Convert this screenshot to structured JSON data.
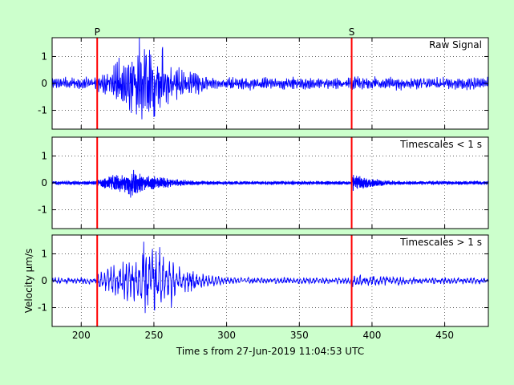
{
  "chart_data": {
    "type": "line",
    "xlabel": "Time s from 27-Jun-2019 11:04:53 UTC",
    "ylabel": "Velocity µm/s",
    "xlim": [
      180,
      480
    ],
    "xticks": [
      200,
      250,
      300,
      350,
      400,
      450
    ],
    "grid": "dotted",
    "line_color": "#0000ff",
    "phase_color": "#ff0000",
    "phases": [
      {
        "label": "P",
        "x": 211
      },
      {
        "label": "S",
        "x": 386
      }
    ],
    "panels": [
      {
        "title": "Raw Signal",
        "ylim": [
          -1.7,
          1.7
        ],
        "yticks": [
          -1,
          0,
          1
        ],
        "waveform": {
          "background_amp": 0.2,
          "events": [
            {
              "start": 211,
              "peak": 248,
              "end": 300,
              "amp": 1.35
            },
            {
              "start": 386,
              "end": 480,
              "amp": 0.28
            }
          ],
          "peaks": [
            {
              "x": 240,
              "y": 1.7
            },
            {
              "x": 238,
              "y": -1.15
            },
            {
              "x": 250,
              "y": -1.25
            },
            {
              "x": 256,
              "y": 1.35
            }
          ]
        }
      },
      {
        "title": "Timescales < 1 s",
        "ylim": [
          -1.7,
          1.7
        ],
        "yticks": [
          -1,
          0,
          1
        ],
        "waveform": {
          "background_amp": 0.07,
          "events": [
            {
              "start": 211,
              "peak": 235,
              "end": 290,
              "amp": 0.45
            },
            {
              "start": 386,
              "end": 420,
              "amp": 0.3
            }
          ],
          "peaks": [
            {
              "x": 236,
              "y": 0.48
            },
            {
              "x": 234,
              "y": -0.55
            }
          ]
        }
      },
      {
        "title": "Timescales > 1 s",
        "ylim": [
          -1.7,
          1.7
        ],
        "yticks": [
          -1,
          0,
          1
        ],
        "waveform": {
          "background_amp": 0.12,
          "events": [
            {
              "start": 211,
              "peak": 250,
              "end": 300,
              "amp": 1.15
            },
            {
              "start": 386,
              "end": 480,
              "amp": 0.25
            }
          ],
          "peaks": [
            {
              "x": 243,
              "y": 1.45
            },
            {
              "x": 244,
              "y": -1.2
            },
            {
              "x": 254,
              "y": 1.25
            },
            {
              "x": 262,
              "y": -1.0
            }
          ]
        }
      }
    ]
  }
}
